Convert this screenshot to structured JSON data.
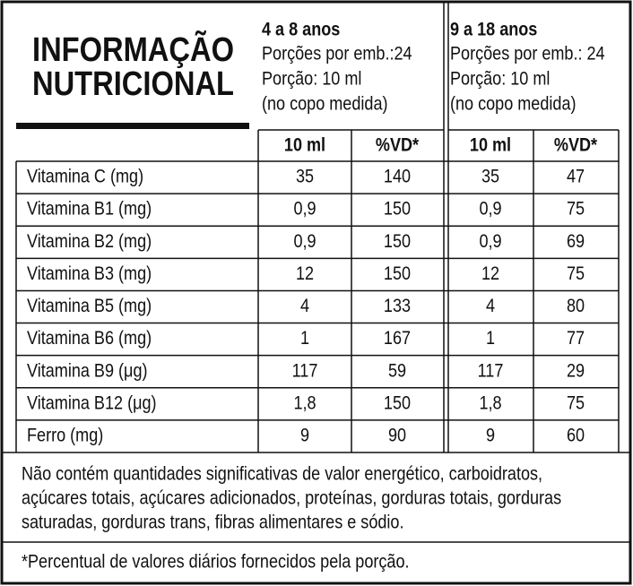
{
  "title": [
    "INFORMAÇÃO",
    "NUTRICIONAL"
  ],
  "groups": [
    {
      "name": "4 a 8 anos",
      "lines": [
        "Porções por emb.:24",
        "Porção: 10 ml",
        "(no copo medida)"
      ],
      "columns": [
        "10 ml",
        "%VD*"
      ]
    },
    {
      "name": "9 a 18 anos",
      "lines": [
        "Porções por emb.: 24",
        "Porção: 10 ml",
        "(no copo medida)"
      ],
      "columns": [
        "10 ml",
        "%VD*"
      ]
    }
  ],
  "rows": [
    {
      "label": "Vitamina C (mg)",
      "values": [
        "35",
        "140",
        "35",
        "47"
      ]
    },
    {
      "label": "Vitamina B1 (mg)",
      "values": [
        "0,9",
        "150",
        "0,9",
        "75"
      ]
    },
    {
      "label": "Vitamina B2 (mg)",
      "values": [
        "0,9",
        "150",
        "0,9",
        "69"
      ]
    },
    {
      "label": "Vitamina B3 (mg)",
      "values": [
        "12",
        "150",
        "12",
        "75"
      ]
    },
    {
      "label": "Vitamina B5 (mg)",
      "values": [
        "4",
        "133",
        "4",
        "80"
      ]
    },
    {
      "label": "Vitamina B6 (mg)",
      "values": [
        "1",
        "167",
        "1",
        "77"
      ]
    },
    {
      "label": "Vitamina B9 (μg)",
      "values": [
        "117",
        "59",
        "117",
        "29"
      ]
    },
    {
      "label": "Vitamina B12 (μg)",
      "values": [
        "1,8",
        "150",
        "1,8",
        "75"
      ]
    },
    {
      "label": "Ferro (mg)",
      "values": [
        "9",
        "90",
        "9",
        "60"
      ]
    }
  ],
  "note": [
    "Não contém quantidades significativas de valor energético, carboidratos,",
    "açúcares totais, açúcares adicionados, proteínas, gorduras totais, gorduras",
    "saturadas, gorduras trans, fibras alimentares e sódio."
  ],
  "footnote": "*Percentual de valores diários fornecidos pela porção."
}
